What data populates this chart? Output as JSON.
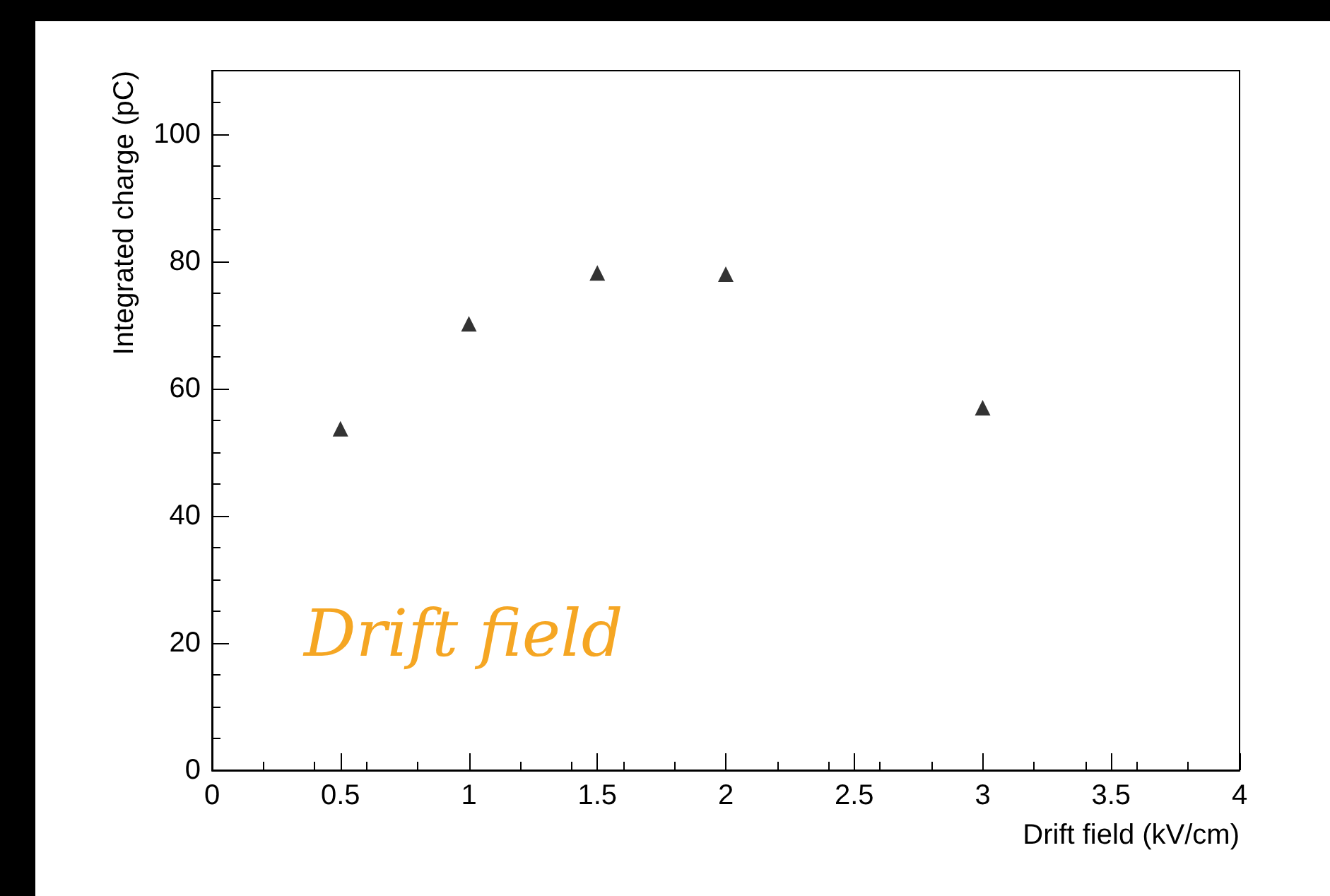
{
  "chart_data": {
    "type": "scatter",
    "xlabel": "Drift field (kV/cm)",
    "ylabel": "Integrated charge (pC)",
    "x": [
      0.5,
      1,
      1.5,
      2,
      3
    ],
    "series": [
      {
        "color": "#000000",
        "values": [
          53.7,
          70.2,
          78.2,
          78.0,
          57.0
        ]
      }
    ],
    "xlim": [
      0,
      4
    ],
    "xticks": [
      0,
      0.5,
      1,
      1.5,
      2,
      2.5,
      3,
      3.5,
      4
    ],
    "ylim": [
      0,
      110
    ],
    "yticks": [
      0,
      20,
      40,
      60,
      80,
      100
    ],
    "grid": false,
    "marker": "triangle",
    "annotations": [
      "Drift field"
    ]
  }
}
